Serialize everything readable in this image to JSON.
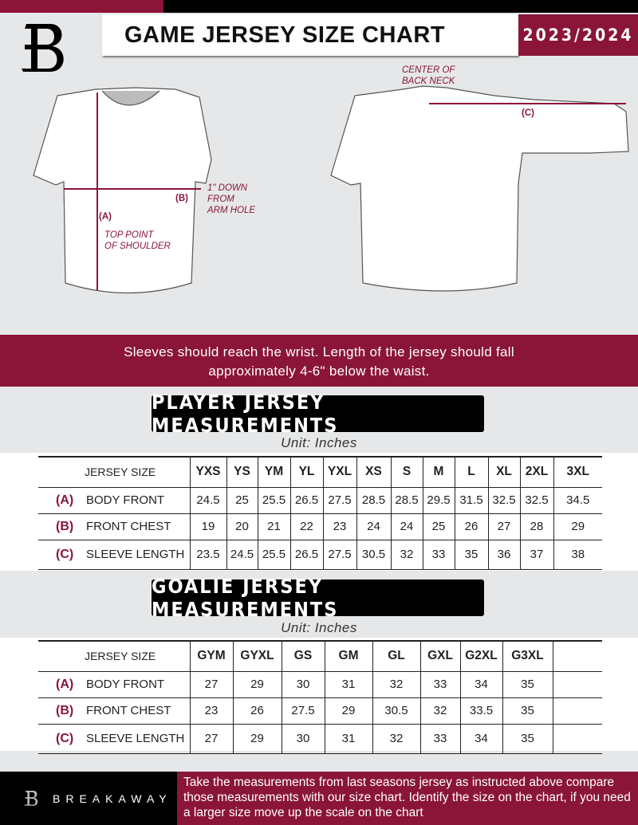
{
  "header": {
    "title": "GAME JERSEY SIZE CHART",
    "season": "2023/2024"
  },
  "diagram": {
    "label_a": "(A)",
    "label_b": "(B)",
    "label_c": "(C)",
    "top_point_1": "TOP POINT",
    "top_point_2": "OF SHOULDER",
    "down_1": "1\" DOWN",
    "down_2": "FROM",
    "down_3": "ARM HOLE",
    "center_1": "CENTER OF",
    "center_2": "BACK NECK"
  },
  "banner": {
    "line1": "Sleeves should reach the wrist. Length of the jersey should fall",
    "line2": "approximately 4-6\" below the waist."
  },
  "player": {
    "heading": "PLAYER JERSEY MEASUREMENTS",
    "unit": "Unit: Inches",
    "size_label": "JERSEY SIZE",
    "sizes": [
      "YXS",
      "YS",
      "YM",
      "YL",
      "YXL",
      "XS",
      "S",
      "M",
      "L",
      "XL",
      "2XL",
      "3XL"
    ],
    "rows": [
      {
        "letter": "(A)",
        "label": "BODY FRONT",
        "values": [
          "24.5",
          "25",
          "25.5",
          "26.5",
          "27.5",
          "28.5",
          "28.5",
          "29.5",
          "31.5",
          "32.5",
          "32.5",
          "34.5"
        ]
      },
      {
        "letter": "(B)",
        "label": "FRONT CHEST",
        "values": [
          "19",
          "20",
          "21",
          "22",
          "23",
          "24",
          "24",
          "25",
          "26",
          "27",
          "28",
          "29"
        ]
      },
      {
        "letter": "(C)",
        "label": "SLEEVE LENGTH",
        "values": [
          "23.5",
          "24.5",
          "25.5",
          "26.5",
          "27.5",
          "30.5",
          "32",
          "33",
          "35",
          "36",
          "37",
          "38"
        ]
      }
    ]
  },
  "goalie": {
    "heading": "GOALIE JERSEY MEASUREMENTS",
    "unit": "Unit: Inches",
    "size_label": "JERSEY SIZE",
    "sizes": [
      "GYM",
      "GYXL",
      "GS",
      "GM",
      "GL",
      "GXL",
      "G2XL",
      "G3XL",
      ""
    ],
    "rows": [
      {
        "letter": "(A)",
        "label": "BODY FRONT",
        "values": [
          "27",
          "29",
          "30",
          "31",
          "32",
          "33",
          "34",
          "35",
          ""
        ]
      },
      {
        "letter": "(B)",
        "label": "FRONT CHEST",
        "values": [
          "23",
          "26",
          "27.5",
          "29",
          "30.5",
          "32",
          "33.5",
          "35",
          ""
        ]
      },
      {
        "letter": "(C)",
        "label": "SLEEVE LENGTH",
        "values": [
          "27",
          "29",
          "30",
          "31",
          "32",
          "33",
          "34",
          "35",
          ""
        ]
      }
    ]
  },
  "footer": {
    "brand": "BREAKAWAY",
    "note": "Take the measurements from last seasons jersey as instructed above compare those measurements  with our size chart. Identify the size on the chart, if you need a larger size move up the scale on the chart"
  },
  "colors": {
    "accent": "#8a1538",
    "background": "#e6e7e8"
  }
}
